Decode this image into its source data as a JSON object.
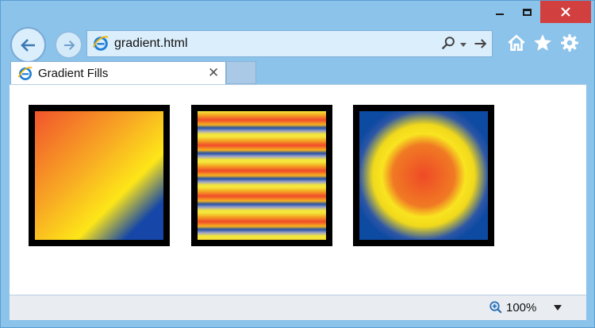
{
  "browser": {
    "address_url": "gradient.html",
    "tab_title": "Gradient Fills",
    "zoom_level": "100%"
  },
  "colors": {
    "frame": "#8cc3ea",
    "close_button": "#d23f3f",
    "gradient_red": "#f1542c",
    "gradient_yellow": "#fde618",
    "gradient_blue": "#1546a8"
  },
  "icons": [
    "minimize-icon",
    "maximize-icon",
    "close-icon",
    "back-arrow-icon",
    "forward-arrow-icon",
    "ie-logo-icon",
    "search-icon",
    "dropdown-caret-icon",
    "go-arrow-icon",
    "home-icon",
    "favorites-star-icon",
    "settings-gear-icon",
    "tab-close-icon",
    "zoom-icon"
  ]
}
